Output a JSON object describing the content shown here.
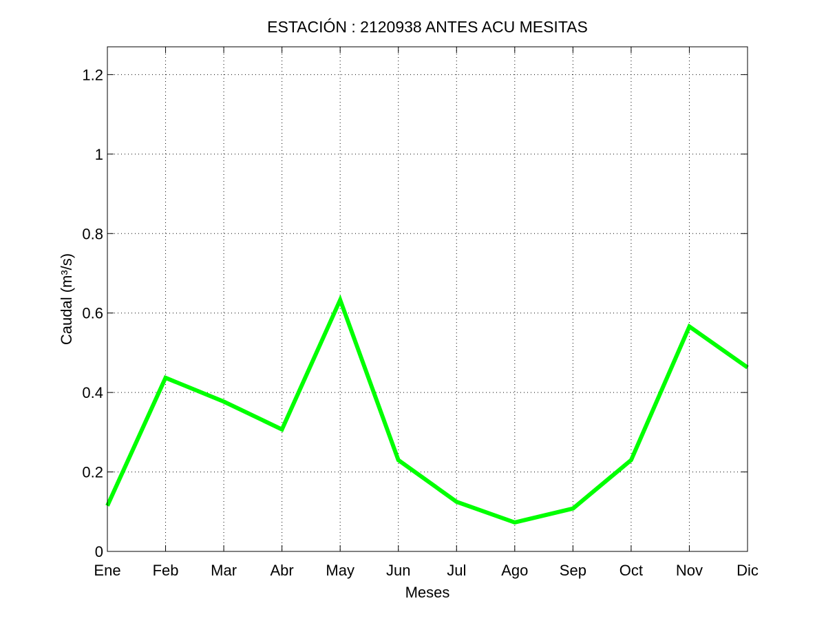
{
  "chart_data": {
    "type": "line",
    "title": "ESTACIÓN :  2120938  ANTES ACU MESITAS",
    "xlabel": "Meses",
    "ylabel": "Caudal (m³/s)",
    "categories": [
      "Ene",
      "Feb",
      "Mar",
      "Abr",
      "May",
      "Jun",
      "Jul",
      "Ago",
      "Sep",
      "Oct",
      "Nov",
      "Dic"
    ],
    "series": [
      {
        "values": [
          0.115,
          0.437,
          0.377,
          0.307,
          0.633,
          0.23,
          0.125,
          0.073,
          0.108,
          0.23,
          0.566,
          0.463
        ]
      }
    ],
    "ylim": [
      0,
      1.27
    ],
    "yticks": [
      0,
      0.2,
      0.4,
      0.6,
      0.8,
      1,
      1.2
    ],
    "ytick_labels": [
      "0",
      "0.2",
      "0.4",
      "0.6",
      "0.8",
      "1",
      "1.2"
    ],
    "grid": true,
    "line_color": "#00ff00",
    "legend": false
  }
}
